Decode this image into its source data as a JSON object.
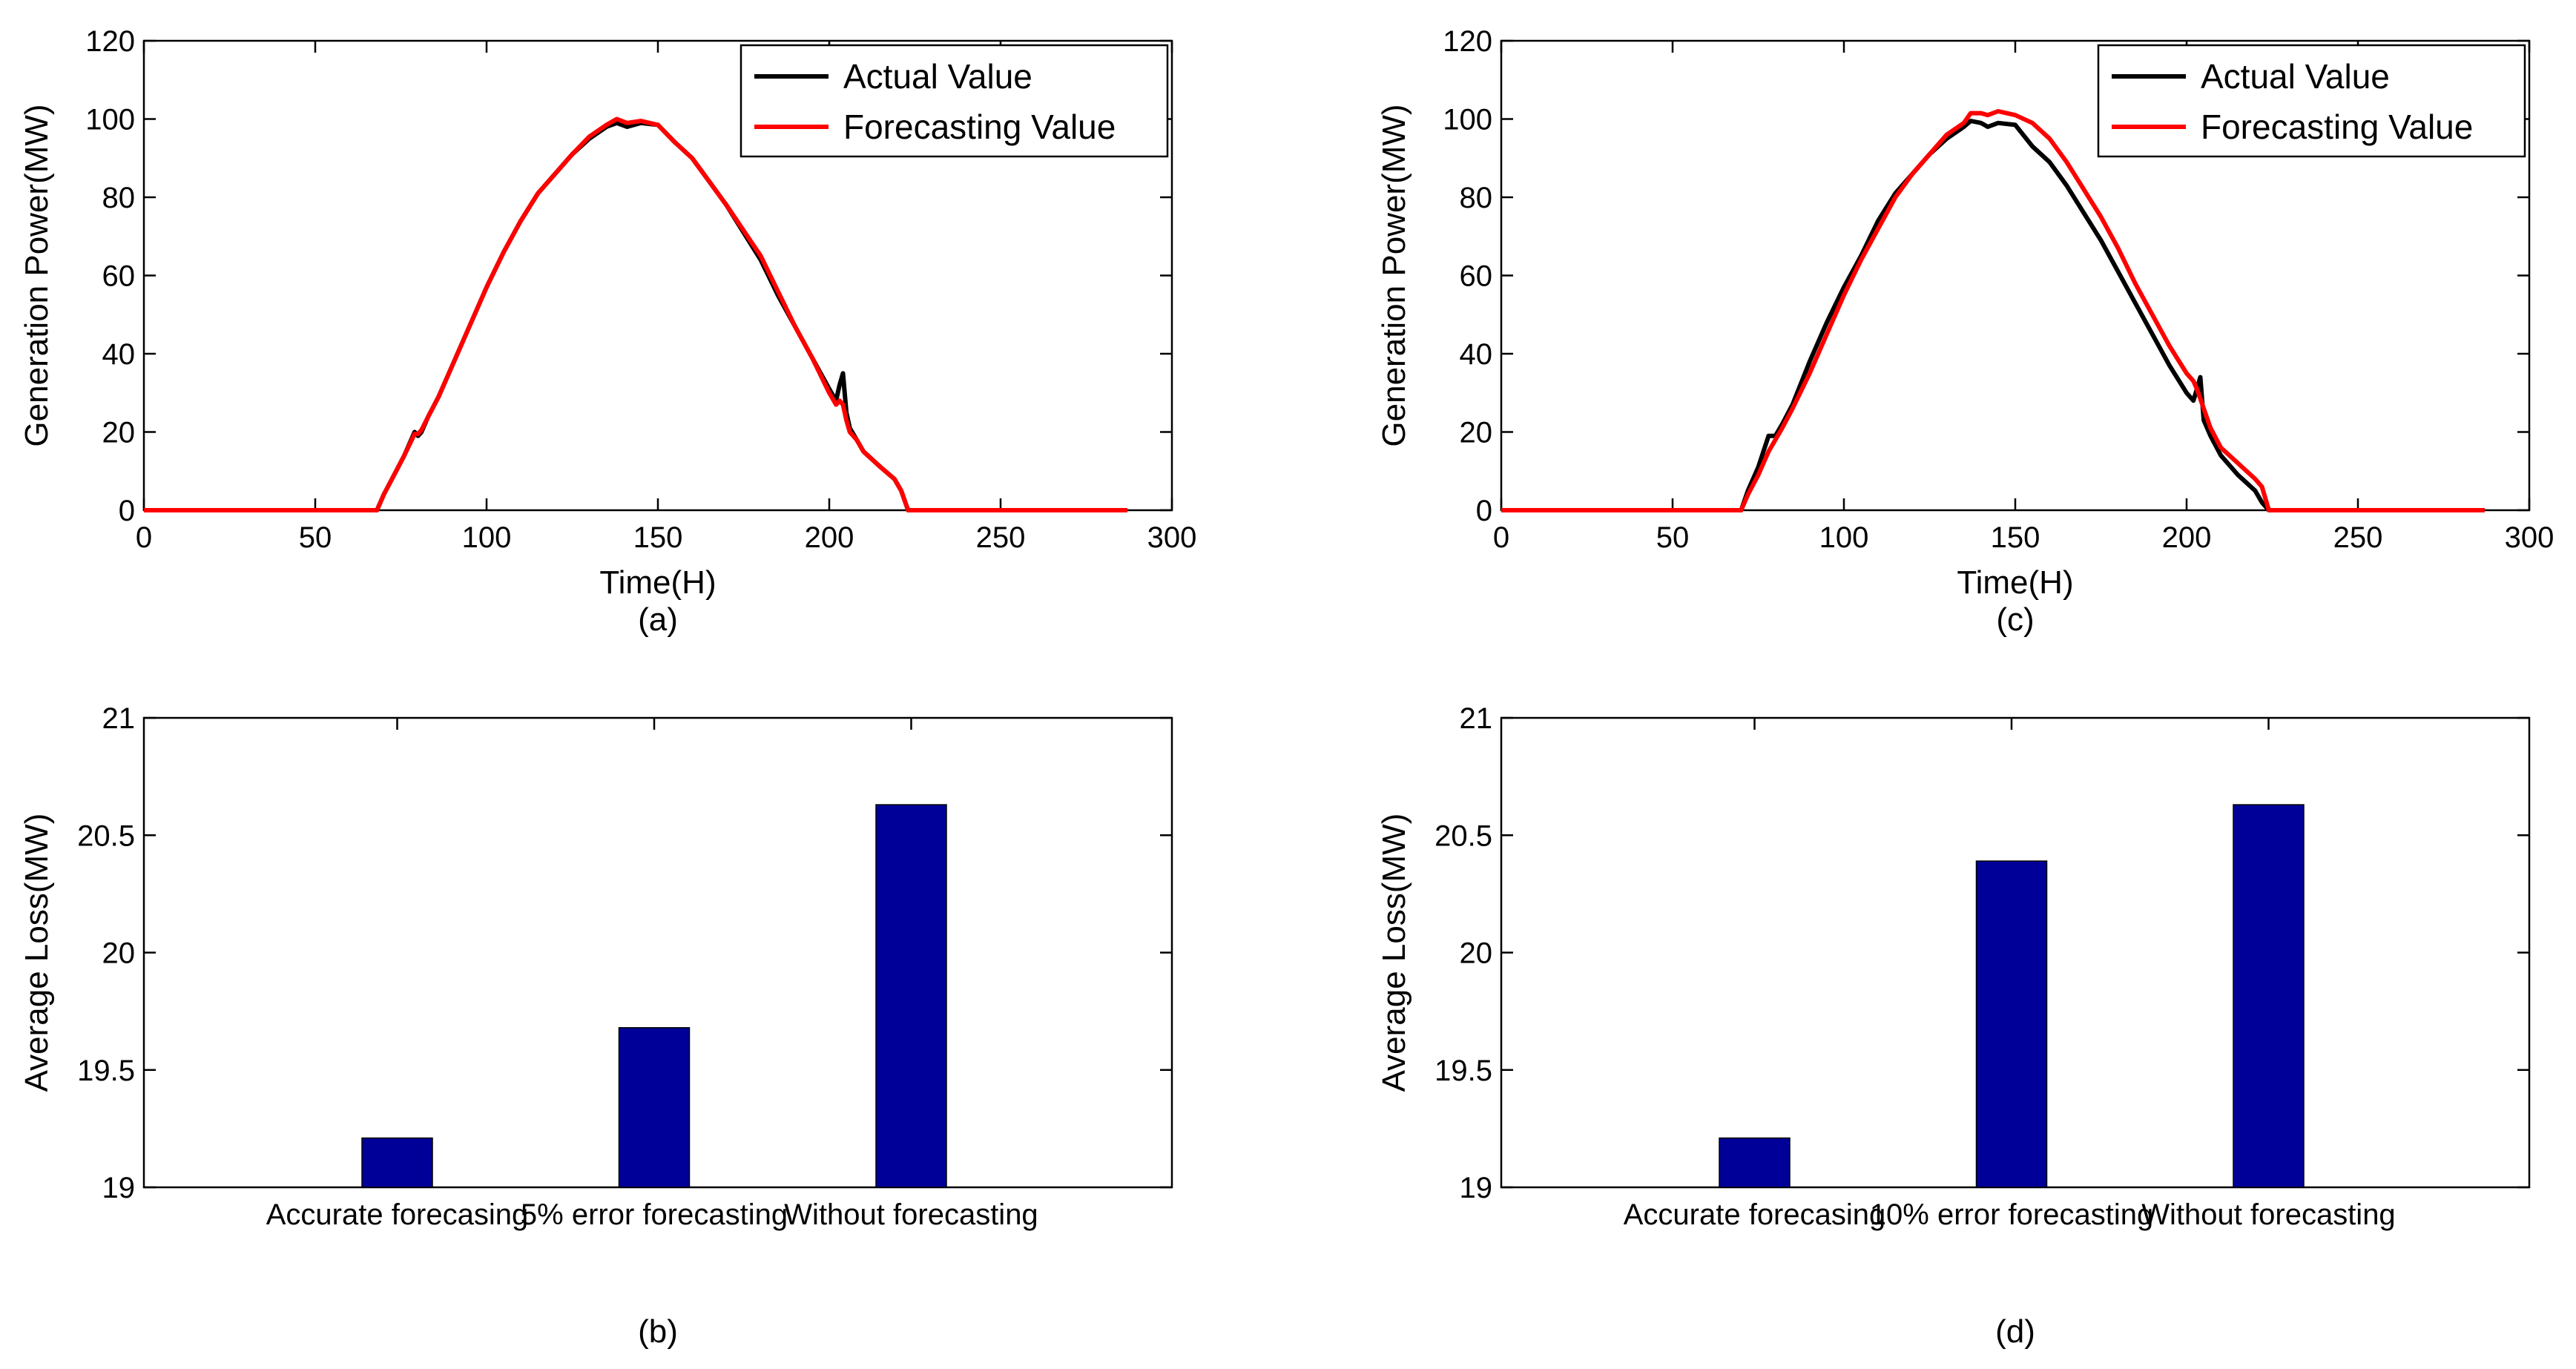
{
  "chart_data": [
    {
      "id": "a",
      "type": "line",
      "panel_label": "(a)",
      "xlabel": "Time(H)",
      "ylabel": "Generation Power(MW)",
      "xlim": [
        0,
        300
      ],
      "ylim": [
        0,
        120
      ],
      "xticks": [
        0,
        50,
        100,
        150,
        200,
        250,
        300
      ],
      "yticks": [
        0,
        20,
        40,
        60,
        80,
        100,
        120
      ],
      "legend_position": "top-right",
      "series": [
        {
          "name": "Actual Value",
          "color": "#000000",
          "points": [
            [
              0,
              0
            ],
            [
              68,
              0
            ],
            [
              70,
              4
            ],
            [
              73,
              9
            ],
            [
              76,
              14
            ],
            [
              79,
              20
            ],
            [
              80,
              19
            ],
            [
              81,
              20
            ],
            [
              83,
              24
            ],
            [
              86,
              29
            ],
            [
              90,
              37
            ],
            [
              95,
              47
            ],
            [
              100,
              57
            ],
            [
              105,
              66
            ],
            [
              110,
              74
            ],
            [
              115,
              81
            ],
            [
              120,
              86
            ],
            [
              125,
              91
            ],
            [
              130,
              95
            ],
            [
              135,
              98
            ],
            [
              138,
              99
            ],
            [
              141,
              98
            ],
            [
              145,
              99
            ],
            [
              150,
              98.5
            ],
            [
              155,
              94
            ],
            [
              160,
              90
            ],
            [
              165,
              84
            ],
            [
              170,
              78
            ],
            [
              175,
              71
            ],
            [
              180,
              64
            ],
            [
              185,
              55
            ],
            [
              190,
              47
            ],
            [
              195,
              39
            ],
            [
              200,
              31
            ],
            [
              202,
              28
            ],
            [
              203,
              32
            ],
            [
              204,
              35
            ],
            [
              205,
              25
            ],
            [
              206,
              21
            ],
            [
              208,
              18
            ],
            [
              210,
              15
            ],
            [
              215,
              11
            ],
            [
              219,
              8
            ],
            [
              221,
              5
            ],
            [
              223,
              0
            ],
            [
              287,
              0
            ]
          ]
        },
        {
          "name": "Forecasting Value",
          "color": "#ff0000",
          "points": [
            [
              0,
              0
            ],
            [
              68,
              0
            ],
            [
              70,
              4
            ],
            [
              73,
              9
            ],
            [
              76,
              14
            ],
            [
              79,
              19.5
            ],
            [
              80,
              19.5
            ],
            [
              81,
              20.5
            ],
            [
              83,
              24
            ],
            [
              86,
              29
            ],
            [
              90,
              37
            ],
            [
              95,
              47
            ],
            [
              100,
              57
            ],
            [
              105,
              66
            ],
            [
              110,
              74
            ],
            [
              115,
              81
            ],
            [
              120,
              86
            ],
            [
              125,
              91
            ],
            [
              130,
              95.5
            ],
            [
              135,
              98.5
            ],
            [
              138,
              100
            ],
            [
              141,
              99
            ],
            [
              145,
              99.5
            ],
            [
              150,
              98.5
            ],
            [
              155,
              94
            ],
            [
              160,
              90
            ],
            [
              165,
              84
            ],
            [
              170,
              78
            ],
            [
              175,
              71.5
            ],
            [
              180,
              65
            ],
            [
              185,
              56
            ],
            [
              190,
              47
            ],
            [
              195,
              39
            ],
            [
              200,
              30
            ],
            [
              202,
              27
            ],
            [
              203,
              28
            ],
            [
              204,
              27
            ],
            [
              205,
              23
            ],
            [
              206,
              20
            ],
            [
              208,
              18
            ],
            [
              210,
              15
            ],
            [
              215,
              11
            ],
            [
              219,
              8
            ],
            [
              221,
              5
            ],
            [
              223,
              0
            ],
            [
              287,
              0
            ]
          ]
        }
      ]
    },
    {
      "id": "b",
      "type": "bar",
      "panel_label": "(b)",
      "xlabel": "",
      "ylabel": "Average Loss(MW)",
      "ylim": [
        19,
        21
      ],
      "yticks": [
        19,
        19.5,
        20,
        20.5,
        21
      ],
      "categories": [
        "Accurate forecasing",
        "5% error forecasting",
        "Without forecasting"
      ],
      "values": [
        19.21,
        19.68,
        20.63
      ],
      "bar_color": "#000099"
    },
    {
      "id": "c",
      "type": "line",
      "panel_label": "(c)",
      "xlabel": "Time(H)",
      "ylabel": "Generation Power(MW)",
      "xlim": [
        0,
        300
      ],
      "ylim": [
        0,
        120
      ],
      "xticks": [
        0,
        50,
        100,
        150,
        200,
        250,
        300
      ],
      "yticks": [
        0,
        20,
        40,
        60,
        80,
        100,
        120
      ],
      "legend_position": "top-right",
      "series": [
        {
          "name": "Actual Value",
          "color": "#000000",
          "points": [
            [
              0,
              0
            ],
            [
              70,
              0
            ],
            [
              72,
              5
            ],
            [
              75,
              11
            ],
            [
              78,
              19
            ],
            [
              80,
              19
            ],
            [
              82,
              22
            ],
            [
              85,
              27
            ],
            [
              90,
              38
            ],
            [
              95,
              48
            ],
            [
              100,
              57
            ],
            [
              105,
              65
            ],
            [
              110,
              74
            ],
            [
              115,
              81
            ],
            [
              120,
              86
            ],
            [
              125,
              91
            ],
            [
              130,
              95
            ],
            [
              135,
              98
            ],
            [
              137,
              99.5
            ],
            [
              140,
              99
            ],
            [
              142,
              98
            ],
            [
              145,
              99
            ],
            [
              150,
              98.5
            ],
            [
              155,
              93
            ],
            [
              160,
              89
            ],
            [
              165,
              83
            ],
            [
              170,
              76
            ],
            [
              175,
              69
            ],
            [
              180,
              61
            ],
            [
              185,
              53
            ],
            [
              190,
              45
            ],
            [
              195,
              37
            ],
            [
              200,
              30
            ],
            [
              202,
              28
            ],
            [
              203,
              31
            ],
            [
              204,
              34
            ],
            [
              205,
              23
            ],
            [
              207,
              19
            ],
            [
              210,
              14
            ],
            [
              215,
              9
            ],
            [
              220,
              5
            ],
            [
              222,
              2
            ],
            [
              224,
              0
            ],
            [
              287,
              0
            ]
          ]
        },
        {
          "name": "Forecasting Value",
          "color": "#ff0000",
          "points": [
            [
              0,
              0
            ],
            [
              70,
              0
            ],
            [
              72,
              4
            ],
            [
              75,
              9
            ],
            [
              78,
              15
            ],
            [
              80,
              18
            ],
            [
              82,
              21
            ],
            [
              85,
              26
            ],
            [
              90,
              35
            ],
            [
              95,
              45
            ],
            [
              100,
              55
            ],
            [
              105,
              64
            ],
            [
              110,
              72
            ],
            [
              115,
              80
            ],
            [
              120,
              86
            ],
            [
              125,
              91
            ],
            [
              130,
              96
            ],
            [
              135,
              99
            ],
            [
              137,
              101.5
            ],
            [
              140,
              101.5
            ],
            [
              142,
              101
            ],
            [
              145,
              102
            ],
            [
              150,
              101
            ],
            [
              155,
              99
            ],
            [
              160,
              95
            ],
            [
              165,
              89
            ],
            [
              170,
              82
            ],
            [
              175,
              75
            ],
            [
              180,
              67
            ],
            [
              185,
              58
            ],
            [
              190,
              50
            ],
            [
              195,
              42
            ],
            [
              200,
              35
            ],
            [
              202,
              33
            ],
            [
              203,
              31
            ],
            [
              205,
              26
            ],
            [
              207,
              21
            ],
            [
              210,
              16
            ],
            [
              215,
              12
            ],
            [
              220,
              8
            ],
            [
              222,
              6
            ],
            [
              224,
              0
            ],
            [
              287,
              0
            ]
          ]
        }
      ]
    },
    {
      "id": "d",
      "type": "bar",
      "panel_label": "(d)",
      "xlabel": "",
      "ylabel": "Average Loss(MW)",
      "ylim": [
        19,
        21
      ],
      "yticks": [
        19,
        19.5,
        20,
        20.5,
        21
      ],
      "categories": [
        "Accurate forecasing",
        "10% error forecasting",
        "Without forecasting"
      ],
      "values": [
        19.21,
        20.39,
        20.63
      ],
      "bar_color": "#000099"
    }
  ]
}
